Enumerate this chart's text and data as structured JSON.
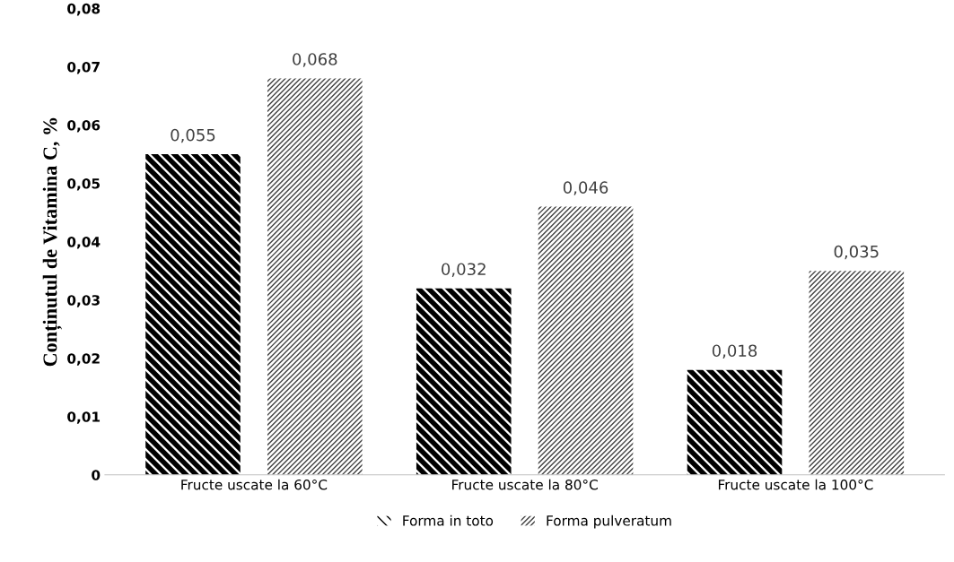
{
  "chart_data": {
    "type": "bar",
    "ylabel": "Conținutul de Vitamina C, %",
    "categories": [
      "Fructe uscate la 60°C",
      "Fructe uscate la 80°C",
      "Fructe uscate la 100°C"
    ],
    "series": [
      {
        "name": "Forma in toto",
        "color": "#000000",
        "values": [
          0.055,
          0.032,
          0.018
        ],
        "value_labels": [
          "0,055",
          "0,032",
          "0,018"
        ]
      },
      {
        "name": "Forma pulveratum",
        "color": "#404040",
        "values": [
          0.068,
          0.046,
          0.035
        ],
        "value_labels": [
          "0,068",
          "0,046",
          "0,035"
        ]
      }
    ],
    "ylim": [
      0,
      0.08
    ],
    "yticks": [
      {
        "value": 0,
        "label": "0"
      },
      {
        "value": 0.01,
        "label": "0,01"
      },
      {
        "value": 0.02,
        "label": "0,02"
      },
      {
        "value": 0.03,
        "label": "0,03"
      },
      {
        "value": 0.04,
        "label": "0,04"
      },
      {
        "value": 0.05,
        "label": "0,05"
      },
      {
        "value": 0.06,
        "label": "0,06"
      },
      {
        "value": 0.07,
        "label": "0,07"
      },
      {
        "value": 0.08,
        "label": "0,08"
      }
    ],
    "grid": false,
    "legend": "bottom"
  }
}
